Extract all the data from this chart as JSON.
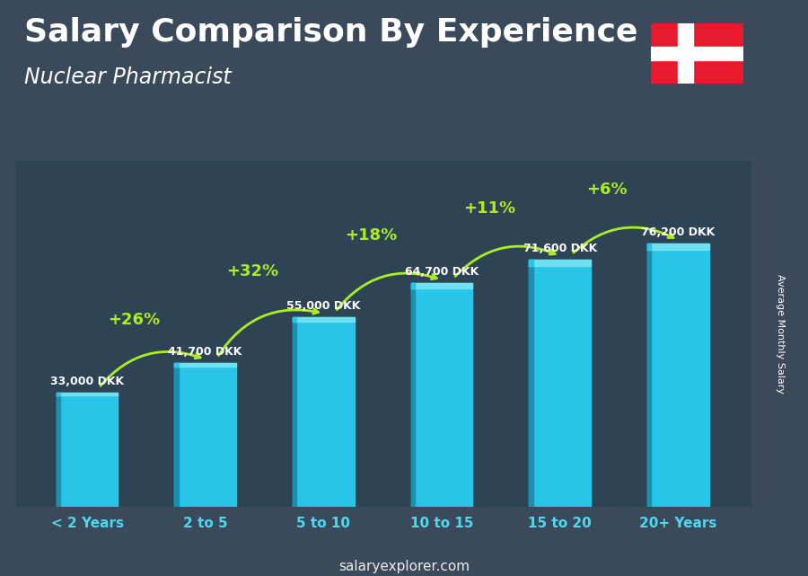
{
  "title": "Salary Comparison By Experience",
  "subtitle": "Nuclear Pharmacist",
  "categories": [
    "< 2 Years",
    "2 to 5",
    "5 to 10",
    "10 to 15",
    "15 to 20",
    "20+ Years"
  ],
  "values": [
    33000,
    41700,
    55000,
    64700,
    71600,
    76200
  ],
  "bar_color_main": "#29c5e8",
  "bar_color_dark": "#1a90b0",
  "bar_color_light": "#70dff0",
  "pct_labels": [
    "+26%",
    "+32%",
    "+18%",
    "+11%",
    "+6%"
  ],
  "salary_labels": [
    "33,000 DKK",
    "41,700 DKK",
    "55,000 DKK",
    "64,700 DKK",
    "71,600 DKK",
    "76,200 DKK"
  ],
  "pct_color": "#aaee22",
  "salary_color": "#ffffff",
  "bg_color": "#3a4a5a",
  "ylabel": "Average Monthly Salary",
  "watermark": "salaryexplorer.com",
  "ylim": [
    0,
    100000
  ],
  "title_fontsize": 26,
  "subtitle_fontsize": 17,
  "flag_red": "#e8192c",
  "flag_white": "#ffffff",
  "xtick_color": "#50d8f0",
  "arrow_color": "#aaee22"
}
